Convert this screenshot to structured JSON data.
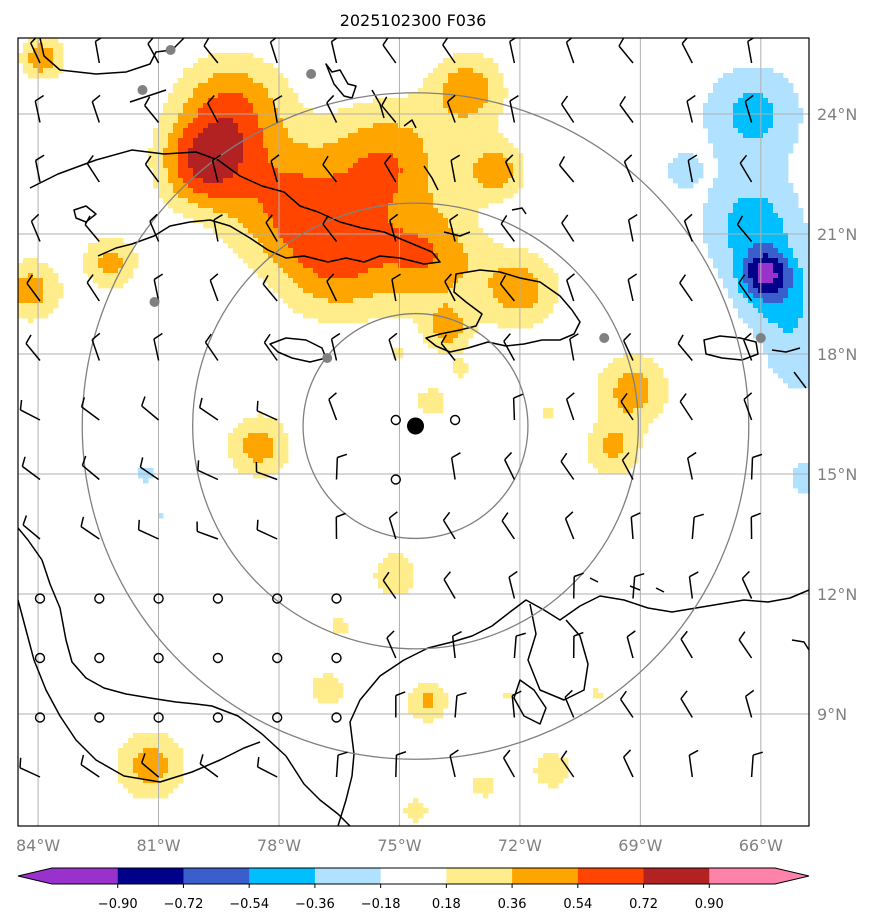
{
  "title": "2025102300 F036",
  "map": {
    "extent": {
      "lon_min": -84.5,
      "lon_max": -64.8,
      "lat_min": 6.2,
      "lat_max": 25.9
    },
    "lon_ticks": [
      {
        "lon": -84,
        "label": "84°W"
      },
      {
        "lon": -81,
        "label": "81°W"
      },
      {
        "lon": -78,
        "label": "78°W"
      },
      {
        "lon": -75,
        "label": "75°W"
      },
      {
        "lon": -72,
        "label": "72°W"
      },
      {
        "lon": -69,
        "label": "69°W"
      },
      {
        "lon": -66,
        "label": "66°W"
      }
    ],
    "lat_ticks": [
      {
        "lat": 24,
        "label": "24°N"
      },
      {
        "lat": 21,
        "label": "21°N"
      },
      {
        "lat": 18,
        "label": "18°N"
      },
      {
        "lat": 15,
        "label": "15°N"
      },
      {
        "lat": 12,
        "label": "12°N"
      },
      {
        "lat": 9,
        "label": "9°N"
      }
    ],
    "gridline_color": "#b0b0b0",
    "center": {
      "lon": -74.6,
      "lat": 16.2
    },
    "range_rings_deg": [
      2.8,
      5.55,
      8.3
    ],
    "ring_color": "#808080",
    "stations": [
      {
        "lon": -80.7,
        "lat": 25.6
      },
      {
        "lon": -81.4,
        "lat": 24.6
      },
      {
        "lon": -77.2,
        "lat": 25.0
      },
      {
        "lon": -81.1,
        "lat": 19.3
      },
      {
        "lon": -76.8,
        "lat": 17.9
      },
      {
        "lon": -69.9,
        "lat": 18.4
      },
      {
        "lon": -66.0,
        "lat": 18.4
      }
    ]
  },
  "colorbar": {
    "levels": [
      -0.9,
      -0.72,
      -0.54,
      -0.36,
      -0.18,
      0.18,
      0.36,
      0.54,
      0.72,
      0.9
    ],
    "tick_labels": [
      "−0.90",
      "−0.72",
      "−0.54",
      "−0.36",
      "−0.18",
      "0.18",
      "0.36",
      "0.54",
      "0.72",
      "0.90"
    ],
    "colors": [
      "#9932cc",
      "#00008b",
      "#3a5fcd",
      "#00bfff",
      "#b0e2ff",
      "#ffffff",
      "#ffec8b",
      "#ffa500",
      "#ff4500",
      "#b22222",
      "#ff82ab"
    ],
    "extend": "both"
  },
  "fields": [
    {
      "lon": -83.9,
      "lat": 25.4,
      "r": 0.55,
      "v": 0.5
    },
    {
      "lon": -79.2,
      "lat": 24.1,
      "r": 1.4,
      "v": 0.55
    },
    {
      "lon": -79.9,
      "lat": 22.7,
      "r": 1.1,
      "v": 0.62
    },
    {
      "lon": -77.8,
      "lat": 21.8,
      "r": 1.6,
      "v": 0.5
    },
    {
      "lon": -75.3,
      "lat": 22.8,
      "r": 1.5,
      "v": 0.52
    },
    {
      "lon": -76.5,
      "lat": 20.3,
      "r": 1.5,
      "v": 0.5
    },
    {
      "lon": -74.2,
      "lat": 20.4,
      "r": 1.3,
      "v": 0.48
    },
    {
      "lon": -73.3,
      "lat": 24.6,
      "r": 0.95,
      "v": 0.48
    },
    {
      "lon": -72.6,
      "lat": 22.6,
      "r": 0.75,
      "v": 0.46
    },
    {
      "lon": -72.0,
      "lat": 19.6,
      "r": 1.0,
      "v": 0.45
    },
    {
      "lon": -73.8,
      "lat": 18.6,
      "r": 0.6,
      "v": 0.4
    },
    {
      "lon": -84.2,
      "lat": 19.6,
      "r": 0.8,
      "v": 0.45
    },
    {
      "lon": -82.2,
      "lat": 20.3,
      "r": 0.7,
      "v": 0.42
    },
    {
      "lon": -69.2,
      "lat": 17.1,
      "r": 0.95,
      "v": 0.44
    },
    {
      "lon": -69.7,
      "lat": 15.6,
      "r": 0.7,
      "v": 0.38
    },
    {
      "lon": -78.5,
      "lat": 15.7,
      "r": 0.8,
      "v": 0.45
    },
    {
      "lon": -74.2,
      "lat": 16.8,
      "r": 0.45,
      "v": 0.3
    },
    {
      "lon": -75.1,
      "lat": 12.5,
      "r": 0.6,
      "v": 0.36
    },
    {
      "lon": -74.3,
      "lat": 9.3,
      "r": 0.55,
      "v": 0.4
    },
    {
      "lon": -81.2,
      "lat": 7.7,
      "r": 0.9,
      "v": 0.45
    },
    {
      "lon": -71.2,
      "lat": 7.6,
      "r": 0.5,
      "v": 0.36
    },
    {
      "lon": -72.9,
      "lat": 7.2,
      "r": 0.35,
      "v": 0.3
    },
    {
      "lon": -76.8,
      "lat": 9.6,
      "r": 0.5,
      "v": 0.33
    },
    {
      "lon": -74.6,
      "lat": 6.6,
      "r": 0.35,
      "v": 0.32
    },
    {
      "lon": -75.0,
      "lat": 18.0,
      "r": 0.25,
      "v": 0.22
    },
    {
      "lon": -73.5,
      "lat": 17.6,
      "r": 0.3,
      "v": 0.22
    },
    {
      "lon": -71.3,
      "lat": 16.5,
      "r": 0.3,
      "v": 0.22
    },
    {
      "lon": -76.5,
      "lat": 11.2,
      "r": 0.35,
      "v": 0.25
    },
    {
      "lon": -70.1,
      "lat": 9.5,
      "r": 0.3,
      "v": 0.22
    },
    {
      "lon": -72.3,
      "lat": 9.5,
      "r": 0.25,
      "v": 0.2
    },
    {
      "lon": -66.2,
      "lat": 24.0,
      "r": 1.3,
      "v": -0.42
    },
    {
      "lon": -66.2,
      "lat": 21.2,
      "r": 1.3,
      "v": -0.45
    },
    {
      "lon": -65.5,
      "lat": 19.4,
      "r": 1.1,
      "v": -0.42
    },
    {
      "lon": -65.9,
      "lat": 20.0,
      "r": 0.55,
      "v": -0.56
    },
    {
      "lon": -65.0,
      "lat": 17.8,
      "r": 0.9,
      "v": -0.3
    },
    {
      "lon": -64.9,
      "lat": 14.9,
      "r": 0.5,
      "v": -0.3
    },
    {
      "lon": -68.0,
      "lat": 22.6,
      "r": 0.5,
      "v": -0.25
    },
    {
      "lon": -81.3,
      "lat": 15.0,
      "r": 0.4,
      "v": -0.22
    },
    {
      "lon": -80.9,
      "lat": 14.0,
      "r": 0.25,
      "v": -0.2
    }
  ]
}
